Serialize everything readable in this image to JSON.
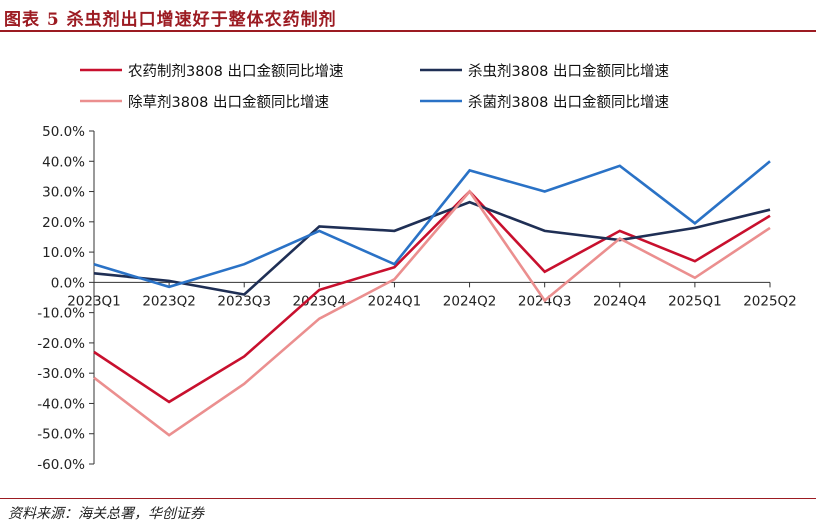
{
  "header": {
    "title": "图表 5   杀虫剂出口增速好于整体农药制剂"
  },
  "footer": {
    "source": "资料来源：海关总署，华创证券"
  },
  "chart_data": {
    "type": "line",
    "title": "",
    "xlabel": "",
    "ylabel": "",
    "categories": [
      "2023Q1",
      "2023Q2",
      "2023Q3",
      "2023Q4",
      "2024Q1",
      "2024Q2",
      "2024Q3",
      "2024Q4",
      "2025Q1",
      "2025Q2"
    ],
    "ylim": [
      -60,
      50
    ],
    "yticks": [
      50,
      40,
      30,
      20,
      10,
      0,
      -10,
      -20,
      -30,
      -40,
      -50,
      -60
    ],
    "ytick_labels": [
      "50.0%",
      "40.0%",
      "30.0%",
      "20.0%",
      "10.0%",
      "0.0%",
      "-10.0%",
      "-20.0%",
      "-30.0%",
      "-40.0%",
      "-50.0%",
      "-60.0%"
    ],
    "legend_position": "top",
    "grid": false,
    "series": [
      {
        "name": "农药制剂3808 出口金额同比增速",
        "color": "#c8102e",
        "values": [
          -23,
          -39.5,
          -24.5,
          -2.5,
          5,
          30,
          3.5,
          17,
          7,
          22
        ]
      },
      {
        "name": "杀虫剂3808 出口金额同比增速",
        "color": "#1f2f55",
        "values": [
          3,
          0.5,
          -4,
          18.5,
          17,
          26.5,
          17,
          14,
          18,
          24
        ]
      },
      {
        "name": "除草剂3808 出口金额同比增速",
        "color": "#eb8f8f",
        "values": [
          -31.5,
          -50.5,
          -33.5,
          -12,
          1,
          30,
          -6,
          14.5,
          1.5,
          18
        ]
      },
      {
        "name": "杀菌剂3808 出口金额同比增速",
        "color": "#2a72c6",
        "values": [
          6,
          -1.5,
          6,
          17,
          6,
          37,
          30,
          38.5,
          19.5,
          40
        ]
      }
    ]
  }
}
